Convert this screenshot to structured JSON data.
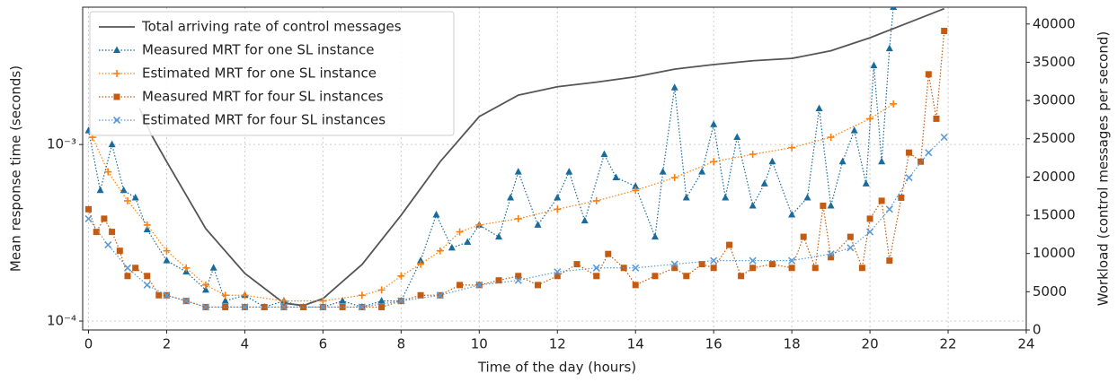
{
  "chart_data": {
    "type": "line",
    "x_label": "Time of the day (hours)",
    "y_label": "Mean response time (seconds)",
    "y2_label": "Workload (control messages per second)",
    "xlim": [
      -0.15,
      24
    ],
    "xticks": [
      0,
      2,
      4,
      6,
      8,
      10,
      12,
      14,
      16,
      18,
      20,
      22,
      24
    ],
    "ylim": [
      8.9e-05,
      0.006
    ],
    "yscale": "log",
    "yticks": [
      {
        "value": 0.0001,
        "label": "10⁻⁴"
      },
      {
        "value": 0.001,
        "label": "10⁻³"
      }
    ],
    "y2lim": [
      0,
      42200
    ],
    "y2ticks": [
      0,
      5000,
      10000,
      15000,
      20000,
      25000,
      30000,
      35000,
      40000
    ],
    "grid": true,
    "legend": "upper left",
    "series": [
      {
        "name": "Total arriving rate of control messages",
        "color": "#555555",
        "axis": "y2",
        "marker": "none",
        "linestyle": "solid",
        "x": [
          1.3,
          1.6,
          2,
          3,
          4,
          5,
          5.5,
          6,
          7,
          8,
          9,
          10,
          11,
          12,
          13,
          14,
          15,
          16,
          17,
          18,
          19,
          20,
          21,
          21.9
        ],
        "values": [
          29000,
          25600,
          22000,
          13250,
          7400,
          3500,
          3200,
          4100,
          8560,
          15000,
          22000,
          27900,
          30700,
          31800,
          32400,
          33100,
          34100,
          34700,
          35200,
          35500,
          36500,
          38200,
          40200,
          42000
        ]
      },
      {
        "name": "Measured MRT for one SL instance",
        "color": "#1a6b9c",
        "marker": "triangle",
        "linestyle": "dotted",
        "x": [
          0,
          0.3,
          0.6,
          0.9,
          1.2,
          1.5,
          2,
          2.5,
          3,
          3.2,
          3.5,
          4,
          4.5,
          5,
          5.5,
          6,
          6.5,
          7,
          7.5,
          8,
          8.5,
          8.9,
          9.3,
          9.7,
          10,
          10.5,
          10.8,
          11,
          11.5,
          12,
          12.3,
          12.7,
          13.2,
          13.5,
          14,
          14.5,
          14.7,
          15,
          15.3,
          15.7,
          16,
          16.3,
          16.6,
          17,
          17.3,
          17.5,
          18,
          18.4,
          18.7,
          19,
          19.3,
          19.6,
          19.9,
          20.1,
          20.3,
          20.5,
          20.6
        ],
        "values": [
          0.0012,
          0.00055,
          0.001,
          0.00055,
          0.0005,
          0.00033,
          0.00022,
          0.00019,
          0.00015,
          0.0002,
          0.00013,
          0.00014,
          0.00012,
          0.00013,
          0.00012,
          0.00012,
          0.00013,
          0.00012,
          0.00013,
          0.00013,
          0.00022,
          0.0004,
          0.00026,
          0.00028,
          0.00035,
          0.0003,
          0.0005,
          0.0007,
          0.00035,
          0.0005,
          0.0007,
          0.00037,
          0.00088,
          0.00065,
          0.00058,
          0.0003,
          0.0007,
          0.0021,
          0.0005,
          0.0007,
          0.0013,
          0.0005,
          0.0011,
          0.00045,
          0.0006,
          0.0008,
          0.0004,
          0.0005,
          0.0016,
          0.00045,
          0.0008,
          0.0012,
          0.0006,
          0.0028,
          0.0008,
          0.0035,
          0.006
        ]
      },
      {
        "name": "Estimated MRT for one SL instance",
        "color": "#ff7f0e",
        "marker": "plus",
        "linestyle": "dotted",
        "x": [
          0.1,
          0.5,
          1,
          1.5,
          2,
          2.5,
          3,
          3.5,
          4,
          5,
          6,
          7,
          7.5,
          8,
          8.5,
          9,
          9.5,
          10,
          11,
          12,
          13,
          14,
          15,
          16,
          17,
          18,
          19,
          20,
          20.6
        ],
        "values": [
          0.0011,
          0.0007,
          0.00048,
          0.00035,
          0.00025,
          0.0002,
          0.00016,
          0.00014,
          0.00014,
          0.00013,
          0.00013,
          0.00014,
          0.00015,
          0.00018,
          0.00021,
          0.00025,
          0.00032,
          0.00035,
          0.00038,
          0.00043,
          0.00048,
          0.00055,
          0.00065,
          0.0008,
          0.00088,
          0.00096,
          0.0011,
          0.0014,
          0.0017
        ]
      },
      {
        "name": "Measured MRT for four SL instances",
        "color": "#c55a11",
        "marker": "square",
        "linestyle": "dotted",
        "x": [
          0,
          0.2,
          0.4,
          0.6,
          0.8,
          1,
          1.2,
          1.5,
          1.8,
          2,
          2.5,
          3,
          3.5,
          4,
          4.5,
          5,
          5.5,
          6,
          6.5,
          7,
          7.5,
          8,
          8.5,
          9,
          9.5,
          10,
          10.5,
          11,
          11.5,
          12,
          12.5,
          13,
          13.3,
          13.7,
          14,
          14.5,
          15,
          15.3,
          15.7,
          16,
          16.4,
          16.7,
          17,
          17.5,
          18,
          18.3,
          18.6,
          18.8,
          19,
          19.5,
          19.8,
          20,
          20.3,
          20.5,
          20.8,
          21,
          21.3,
          21.5,
          21.7,
          21.9
        ],
        "values": [
          0.00043,
          0.00032,
          0.00038,
          0.00032,
          0.00025,
          0.00018,
          0.0002,
          0.00018,
          0.00014,
          0.00014,
          0.00013,
          0.00012,
          0.00012,
          0.00012,
          0.00012,
          0.00012,
          0.00012,
          0.00012,
          0.00012,
          0.00012,
          0.00012,
          0.00013,
          0.00014,
          0.00014,
          0.00016,
          0.00016,
          0.00017,
          0.00018,
          0.00016,
          0.00018,
          0.00021,
          0.00018,
          0.00024,
          0.0002,
          0.00016,
          0.00018,
          0.0002,
          0.00018,
          0.00021,
          0.0002,
          0.00027,
          0.00018,
          0.0002,
          0.00021,
          0.0002,
          0.0003,
          0.0002,
          0.00045,
          0.00023,
          0.0003,
          0.0002,
          0.00038,
          0.00048,
          0.00022,
          0.0005,
          0.0009,
          0.0008,
          0.0025,
          0.0014,
          0.0044
        ]
      },
      {
        "name": "Estimated MRT for four SL instances",
        "color": "#5b9bd5",
        "marker": "x",
        "linestyle": "dotted",
        "x": [
          0,
          0.5,
          1,
          1.5,
          2,
          2.5,
          3,
          4,
          5,
          6,
          7,
          8,
          9,
          10,
          11,
          12,
          13,
          14,
          15,
          16,
          17,
          18,
          19,
          19.5,
          20,
          20.5,
          21,
          21.5,
          21.9
        ],
        "values": [
          0.00038,
          0.00027,
          0.0002,
          0.00016,
          0.00014,
          0.00013,
          0.00012,
          0.00012,
          0.00012,
          0.00012,
          0.00012,
          0.00013,
          0.00014,
          0.00016,
          0.00017,
          0.00019,
          0.0002,
          0.0002,
          0.00021,
          0.00022,
          0.00022,
          0.00022,
          0.00024,
          0.00026,
          0.00032,
          0.00043,
          0.00065,
          0.0009,
          0.0011
        ]
      }
    ]
  }
}
